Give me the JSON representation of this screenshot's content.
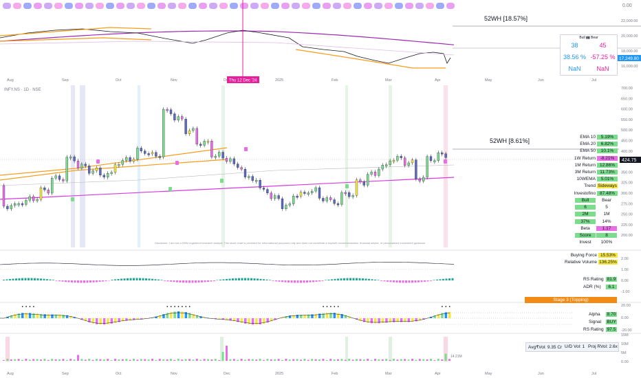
{
  "top_pane": {
    "axis_labels": [
      "22,000.00",
      "20,000.00",
      "18,000.00",
      "16,000.00",
      "14,000.00"
    ],
    "price_tag": "17,249.80",
    "header_value": "0.00",
    "cursor_date": "Thu 12 Dec '24",
    "months": [
      "Aug",
      "Sep",
      "Oct",
      "Nov",
      "Dec",
      "2025",
      "Feb",
      "Mar",
      "Apr",
      "May",
      "Jun",
      "Jul"
    ],
    "label_52wh": "52WH [18.57%]",
    "bull_bear": {
      "header": "Bull ▮▮ Bear",
      "bull_count": "38",
      "bear_count": "45",
      "bull_pct": "38.56 %",
      "bear_pct": "-57.25 %",
      "bull_nan": "NaN",
      "bear_nan": "NaN"
    }
  },
  "main_pane": {
    "symbol_label": "INFY.NS · 1D · NSE",
    "axis_labels": [
      "700.00",
      "650.00",
      "600.00",
      "550.00",
      "500.00",
      "450.00",
      "400.00",
      "375.00",
      "350.00",
      "325.00",
      "300.00",
      "275.00",
      "250.00",
      "225.00",
      "200.00"
    ],
    "price_tag": "424.75",
    "label_52wh": "52WH [8.61%]",
    "disclaimer": "Disclaimer: I am not a SEBI registered research analyst. This stock chart is provided for informational purposes only and does not constitute a buy/sell recommendation, financial advice, or personalized investment guidance.",
    "stats": [
      {
        "k": "EMA 10",
        "v": "5.19%",
        "c": "#7bdc8c"
      },
      {
        "k": "EMA 20",
        "v": "6.82%",
        "c": "#7bdc8c"
      },
      {
        "k": "EMA 50",
        "v": "10.1%",
        "c": "#7bdc8c"
      },
      {
        "k": "1W Return",
        "v": "-8.21%",
        "c": "#e96ee6"
      },
      {
        "k": "1M Return",
        "v": "12.86%",
        "c": "#7bdc8c"
      },
      {
        "k": "3M Return",
        "v": "11.73%",
        "c": "#7bdc8c"
      },
      {
        "k": "10WEMA",
        "v": "5.01%",
        "c": "#7bdc8c"
      },
      {
        "k": "Trend",
        "v": "Sideways",
        "c": "#f5e642"
      },
      {
        "k": "Investofino",
        "v": "87.48%",
        "c": "#7bdc8c"
      }
    ],
    "bull_bear_table": {
      "bull_label": "Bull",
      "bear_label": "Bear",
      "rows": [
        [
          "6",
          "5"
        ],
        [
          "2M",
          "1M"
        ],
        [
          "37%",
          "14%"
        ]
      ],
      "beta_label": "Beta",
      "beta_value": "1.17",
      "score_label": "Score",
      "score_value": "8",
      "invest_label": "Invest",
      "invest_value": "100%"
    }
  },
  "pane2": {
    "axis_labels": [
      "2.00",
      "1.00",
      "0.00",
      "-1.00"
    ],
    "buying_force_label": "Buying Force",
    "buying_force_value": "15.53%",
    "rel_vol_label": "Relative Volume",
    "rel_vol_value": "136.25%",
    "rs_label": "RS Rating",
    "rs_value": "81.9",
    "adr_label": "ADR (%)",
    "adr_value": "6.1"
  },
  "pane3": {
    "stage_label": "Stage 3 (Topping)",
    "axis_labels": [
      "20.00",
      "0.00",
      "-20.00"
    ],
    "alpha_label": "Alpha",
    "alpha_value": "8.70",
    "signal_label": "Signal",
    "signal_value": "BUY",
    "rs_label": "RS Rating",
    "rs_value": "97.5"
  },
  "pane4": {
    "axis_labels": [
      "15M",
      "10M",
      "5M",
      "0.00"
    ],
    "vol_tag": "14.21M",
    "avg_vol": "Avg₹Vol: 9.35 Cr",
    "ud_vol": "U/D Vol: 1",
    "proj_rvol": "Proj RVol: 2.6x"
  },
  "colors": {
    "up": "#26a69a",
    "down": "#ef5350",
    "ema_orange": "#f59d1a",
    "ema_purple": "#9c27b0",
    "magenta": "#e91e9b",
    "green_cell": "#7bdc8c"
  },
  "chart_data": {
    "type": "candlestick",
    "x_range": [
      "Aug 2024",
      "Jul 2025"
    ],
    "main_price": {
      "ylim": [
        200,
        700
      ],
      "last": 424.75,
      "approx_closes": [
        360,
        365,
        370,
        380,
        395,
        420,
        410,
        405,
        400,
        415,
        420,
        430,
        425,
        480,
        470,
        455,
        440,
        425,
        420,
        410,
        395,
        380,
        370,
        360,
        375,
        380,
        370,
        365,
        375,
        390,
        400,
        410,
        420,
        415,
        395,
        420,
        424.75
      ]
    },
    "index_price": {
      "ylim": [
        13000,
        23000
      ],
      "last": 17249.8
    },
    "volume": {
      "ylim": [
        0,
        15
      ],
      "unit": "M",
      "last": 14.21
    }
  }
}
